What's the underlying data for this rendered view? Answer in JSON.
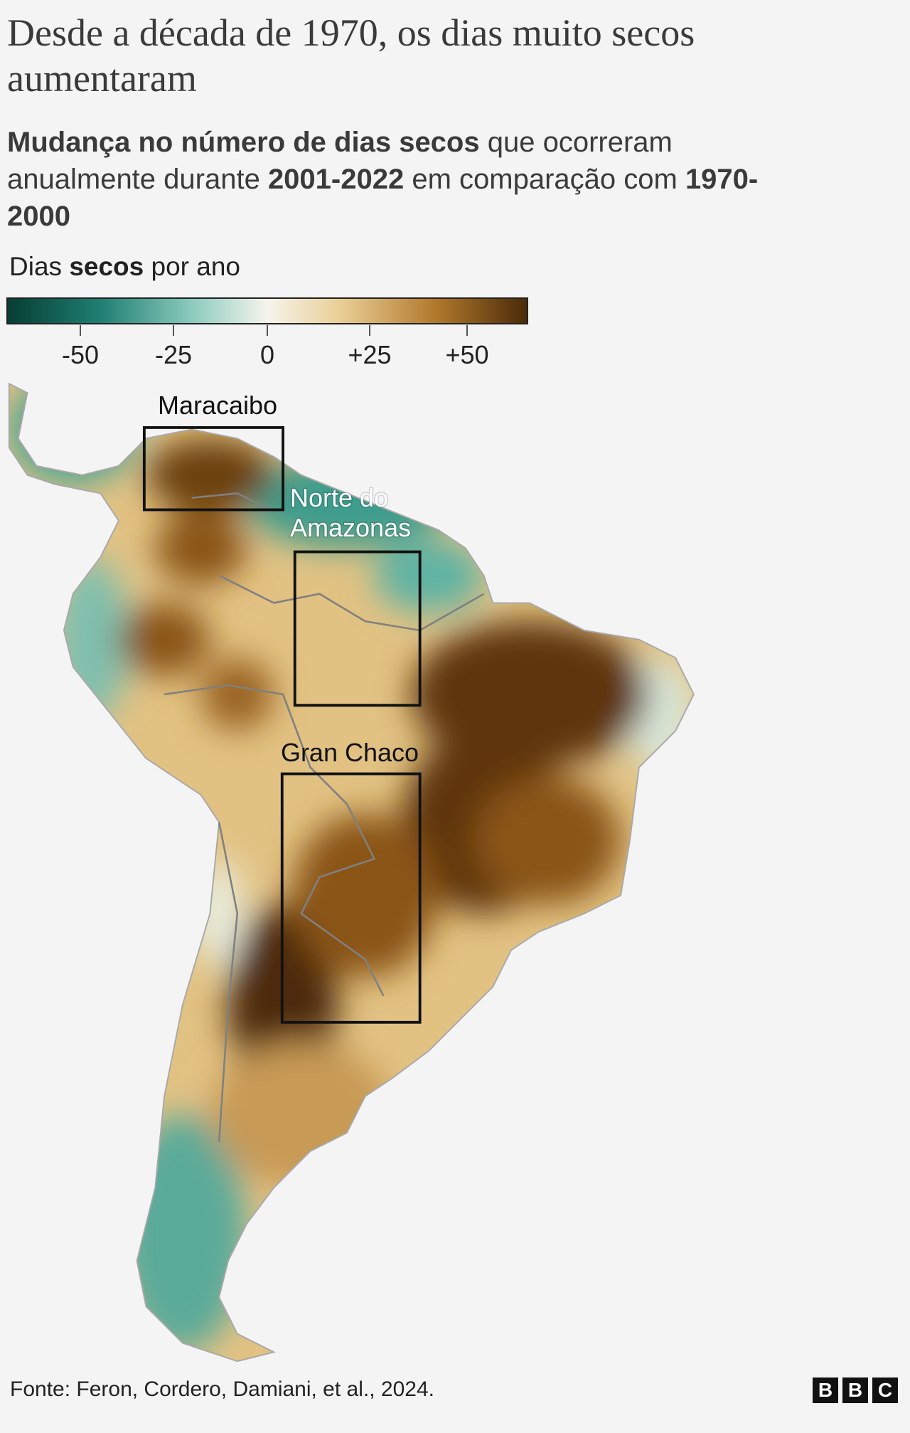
{
  "header": {
    "title": "Desde a década de 1970, os dias muito secos aumentaram",
    "subtitle": [
      {
        "text": "Mudança no número de dias secos",
        "bold": true
      },
      {
        "text": " que ocorreram anualmente durante ",
        "bold": false
      },
      {
        "text": "2001-2022",
        "bold": true
      },
      {
        "text": " em comparação com ",
        "bold": false
      },
      {
        "text": "1970-2000",
        "bold": true
      }
    ]
  },
  "legend": {
    "title": [
      {
        "text": "Dias ",
        "bold": false
      },
      {
        "text": "secos",
        "bold": true
      },
      {
        "text": " por ano",
        "bold": false
      }
    ],
    "ticks": [
      "-50",
      "-25",
      "0",
      "+25",
      "+50"
    ]
  },
  "map": {
    "regions": [
      {
        "label": "Maracaibo"
      },
      {
        "label": "Norte do Amazonas"
      },
      {
        "label": "Gran Chaco"
      }
    ]
  },
  "footer": {
    "source": "Fonte: Feron, Cordero, Damiani, et al., 2024.",
    "logo": [
      "B",
      "B",
      "C"
    ]
  }
}
